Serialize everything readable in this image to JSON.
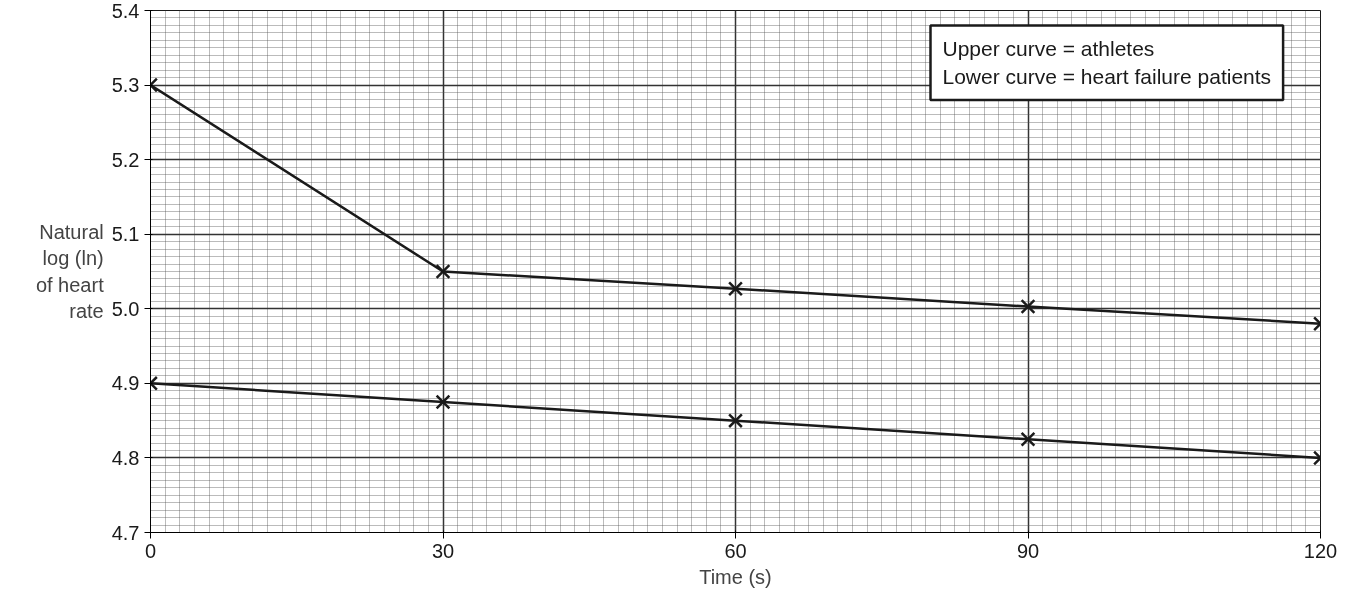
{
  "chart_data": {
    "type": "line",
    "xlabel": "Time (s)",
    "ylabel": "Natural log (ln) of heart rate",
    "x": [
      0,
      30,
      60,
      90,
      120
    ],
    "series": [
      {
        "color": "#1a1a1a",
        "values": [
          5.3,
          5.05,
          5.027,
          5.003,
          4.98
        ]
      },
      {
        "color": "#1a1a1a",
        "values": [
          4.9,
          4.875,
          4.85,
          4.825,
          4.8
        ]
      }
    ],
    "xlim": [
      0,
      120
    ],
    "ylim": [
      4.7,
      5.4
    ],
    "xticks": [
      0,
      30,
      60,
      90,
      120
    ],
    "yticks": [
      {
        "value": 4.7,
        "label": "4.7"
      },
      {
        "value": 4.8,
        "label": "4.8"
      },
      {
        "value": 4.9,
        "label": "4.9"
      },
      {
        "value": 5.0,
        "label": "5.0"
      },
      {
        "value": 5.1,
        "label": "5.1"
      },
      {
        "value": 5.2,
        "label": "5.2"
      },
      {
        "value": 5.3,
        "label": "5.3"
      },
      {
        "value": 5.4,
        "label": "5.4"
      }
    ],
    "annotations": [
      "Upper curve = athletes",
      "Lower curve = heart failure patients"
    ],
    "grid": true,
    "marker": "cross",
    "line_style": "solid"
  }
}
